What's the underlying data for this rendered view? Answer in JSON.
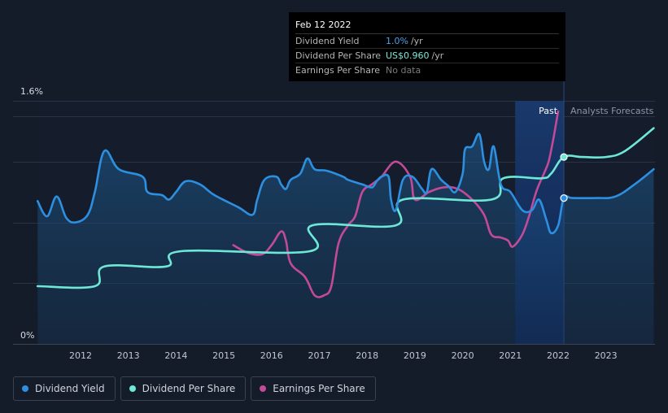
{
  "tooltip": {
    "date": "Feb 12 2022",
    "rows": [
      {
        "label": "Dividend Yield",
        "value": "1.0%",
        "unit": "/yr",
        "color": "#4ba3ee"
      },
      {
        "label": "Dividend Per Share",
        "value": "US$0.960",
        "unit": "/yr",
        "color": "#7de8d8"
      },
      {
        "label": "Earnings Per Share",
        "value": "No data",
        "unit": "",
        "color": "#7b7b7b"
      }
    ]
  },
  "legend": [
    {
      "label": "Dividend Yield",
      "color": "#2d8fe0"
    },
    {
      "label": "Dividend Per Share",
      "color": "#6ee8d6"
    },
    {
      "label": "Earnings Per Share",
      "color": "#c24a97"
    }
  ],
  "chart_data": {
    "type": "line",
    "y_top_label": "1.6%",
    "y_bottom_label": "0%",
    "ylim": [
      0,
      1.6
    ],
    "xlim": [
      2011.1,
      2024.0
    ],
    "x_ticks": [
      2012,
      2013,
      2014,
      2015,
      2016,
      2017,
      2018,
      2019,
      2020,
      2021,
      2022,
      2023
    ],
    "past_label": "Past",
    "forecast_label": "Analysts Forecasts",
    "forecast_start": 2022.12,
    "past_band_start": 2021.1,
    "grid": true,
    "series": [
      {
        "name": "Dividend Yield",
        "color": "#2d8fe0",
        "fill": true,
        "points": [
          [
            2011.1,
            0.94
          ],
          [
            2011.3,
            0.84
          ],
          [
            2011.5,
            0.97
          ],
          [
            2011.7,
            0.83
          ],
          [
            2011.9,
            0.8
          ],
          [
            2012.15,
            0.85
          ],
          [
            2012.3,
            1.0
          ],
          [
            2012.5,
            1.27
          ],
          [
            2012.8,
            1.15
          ],
          [
            2013.3,
            1.1
          ],
          [
            2013.4,
            1.0
          ],
          [
            2013.7,
            0.98
          ],
          [
            2013.85,
            0.95
          ],
          [
            2014.0,
            1.0
          ],
          [
            2014.2,
            1.07
          ],
          [
            2014.5,
            1.05
          ],
          [
            2014.8,
            0.98
          ],
          [
            2015.3,
            0.9
          ],
          [
            2015.6,
            0.85
          ],
          [
            2015.7,
            0.95
          ],
          [
            2015.85,
            1.08
          ],
          [
            2016.1,
            1.1
          ],
          [
            2016.2,
            1.05
          ],
          [
            2016.3,
            1.02
          ],
          [
            2016.4,
            1.08
          ],
          [
            2016.6,
            1.12
          ],
          [
            2016.75,
            1.22
          ],
          [
            2016.9,
            1.15
          ],
          [
            2017.15,
            1.14
          ],
          [
            2017.5,
            1.1
          ],
          [
            2017.6,
            1.08
          ],
          [
            2017.9,
            1.05
          ],
          [
            2018.1,
            1.03
          ],
          [
            2018.2,
            1.07
          ],
          [
            2018.3,
            1.1
          ],
          [
            2018.45,
            1.1
          ],
          [
            2018.5,
            0.95
          ],
          [
            2018.6,
            0.88
          ],
          [
            2018.75,
            1.08
          ],
          [
            2018.95,
            1.1
          ],
          [
            2019.15,
            1.02
          ],
          [
            2019.25,
            1.0
          ],
          [
            2019.35,
            1.15
          ],
          [
            2019.55,
            1.08
          ],
          [
            2019.7,
            1.04
          ],
          [
            2019.85,
            1.0
          ],
          [
            2020.0,
            1.12
          ],
          [
            2020.05,
            1.28
          ],
          [
            2020.2,
            1.3
          ],
          [
            2020.35,
            1.38
          ],
          [
            2020.45,
            1.2
          ],
          [
            2020.55,
            1.15
          ],
          [
            2020.65,
            1.3
          ],
          [
            2020.8,
            1.05
          ],
          [
            2021.0,
            1.0
          ],
          [
            2021.25,
            0.88
          ],
          [
            2021.45,
            0.88
          ],
          [
            2021.6,
            0.95
          ],
          [
            2021.75,
            0.82
          ],
          [
            2021.85,
            0.73
          ],
          [
            2022.0,
            0.78
          ],
          [
            2022.12,
            0.96
          ],
          [
            2022.3,
            0.96
          ],
          [
            2022.8,
            0.96
          ],
          [
            2023.2,
            0.97
          ],
          [
            2023.6,
            1.05
          ],
          [
            2024.0,
            1.15
          ]
        ]
      },
      {
        "name": "Dividend Per Share",
        "color": "#6ee8d6",
        "fill": false,
        "points": [
          [
            2011.1,
            0.38
          ],
          [
            2012.3,
            0.38
          ],
          [
            2012.5,
            0.51
          ],
          [
            2013.8,
            0.51
          ],
          [
            2014.1,
            0.61
          ],
          [
            2016.8,
            0.61
          ],
          [
            2016.85,
            0.78
          ],
          [
            2018.6,
            0.78
          ],
          [
            2018.75,
            0.95
          ],
          [
            2020.6,
            0.95
          ],
          [
            2020.85,
            1.09
          ],
          [
            2021.65,
            1.09
          ],
          [
            2021.85,
            1.12
          ],
          [
            2022.12,
            1.23
          ],
          [
            2022.5,
            1.23
          ],
          [
            2023.0,
            1.23
          ],
          [
            2023.4,
            1.27
          ],
          [
            2024.0,
            1.42
          ]
        ]
      },
      {
        "name": "Earnings Per Share",
        "color": "#c24a97",
        "fill": false,
        "points": [
          [
            2015.2,
            0.65
          ],
          [
            2015.5,
            0.6
          ],
          [
            2015.8,
            0.59
          ],
          [
            2016.0,
            0.65
          ],
          [
            2016.2,
            0.74
          ],
          [
            2016.3,
            0.68
          ],
          [
            2016.4,
            0.53
          ],
          [
            2016.7,
            0.44
          ],
          [
            2016.9,
            0.32
          ],
          [
            2017.1,
            0.32
          ],
          [
            2017.25,
            0.38
          ],
          [
            2017.4,
            0.66
          ],
          [
            2017.6,
            0.78
          ],
          [
            2017.75,
            0.84
          ],
          [
            2017.9,
            1.0
          ],
          [
            2018.1,
            1.05
          ],
          [
            2018.3,
            1.1
          ],
          [
            2018.6,
            1.2
          ],
          [
            2018.9,
            1.1
          ],
          [
            2019.0,
            0.95
          ],
          [
            2019.3,
            1.0
          ],
          [
            2019.6,
            1.03
          ],
          [
            2019.9,
            1.02
          ],
          [
            2020.2,
            0.95
          ],
          [
            2020.45,
            0.85
          ],
          [
            2020.6,
            0.72
          ],
          [
            2020.8,
            0.7
          ],
          [
            2020.95,
            0.68
          ],
          [
            2021.05,
            0.64
          ],
          [
            2021.25,
            0.72
          ],
          [
            2021.4,
            0.85
          ],
          [
            2021.55,
            1.01
          ],
          [
            2021.7,
            1.12
          ],
          [
            2021.8,
            1.2
          ],
          [
            2021.9,
            1.35
          ],
          [
            2022.0,
            1.53
          ]
        ]
      }
    ],
    "markers": [
      {
        "series": "Dividend Per Share",
        "x": 2022.12,
        "y": 1.23,
        "color": "#6ee8d6"
      },
      {
        "series": "Dividend Yield",
        "x": 2022.12,
        "y": 0.96,
        "color": "#2d8fe0"
      }
    ]
  }
}
